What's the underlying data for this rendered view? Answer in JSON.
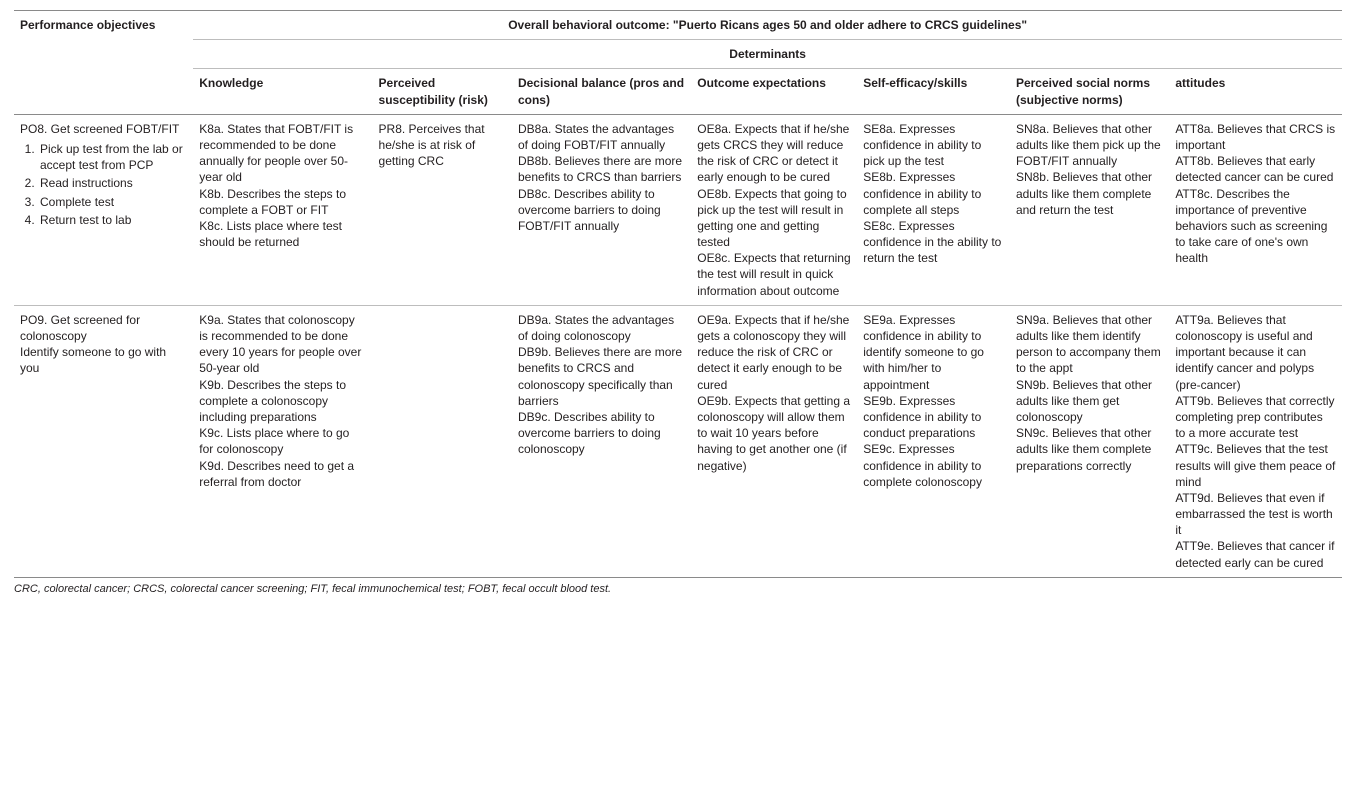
{
  "header": {
    "perf_obj": "Performance objectives",
    "overall": "Overall behavioral outcome: \"Puerto Ricans ages 50 and older adhere to CRCS guidelines\"",
    "determinants": "Determinants",
    "cols": {
      "knowledge": "Knowledge",
      "susceptibility": "Perceived susceptibility (risk)",
      "decisional": "Decisional balance (pros and cons)",
      "outcome": "Outcome expectations",
      "selfefficacy": "Self-efficacy/skills",
      "norms": "Perceived social norms (subjective norms)",
      "attitudes": "attitudes"
    }
  },
  "row_po8": {
    "po_title": "PO8. Get screened FOBT/FIT",
    "po_items": [
      "Pick up test from the lab or accept test from PCP",
      "Read instructions",
      "Complete test",
      "Return test to lab"
    ],
    "knowledge": "K8a. States that FOBT/FIT is recommended to be done annually for people over 50-year old\nK8b. Describes the steps to complete a FOBT or FIT\nK8c. Lists place where test should be returned",
    "susceptibility": "PR8. Perceives that he/she is at risk of getting CRC",
    "decisional": "DB8a. States the advantages of doing FOBT/FIT annually\nDB8b. Believes there are more benefits to CRCS than barriers\nDB8c. Describes ability to overcome barriers to doing FOBT/FIT annually",
    "outcome": "OE8a. Expects that if he/she gets CRCS they will reduce the risk of CRC or detect it early enough to be cured\nOE8b. Expects that going to pick up the test will result in getting one and getting tested\nOE8c. Expects that returning the test will result in quick information about outcome",
    "selfefficacy": "SE8a. Expresses confidence in ability to pick up the test\nSE8b. Expresses confidence in ability to complete all steps\nSE8c. Expresses confidence in the ability to return the test",
    "norms": "SN8a. Believes that other adults like them pick up the FOBT/FIT annually\nSN8b. Believes that other adults like them complete and return the test",
    "attitudes": "ATT8a. Believes that CRCS is important\nATT8b. Believes that early detected cancer can be cured\nATT8c. Describes the importance of preventive behaviors such as screening to take care of one's own health"
  },
  "row_po9": {
    "po_title": "PO9. Get screened for colonoscopy\nIdentify someone to go with you",
    "knowledge": "K9a. States that colonoscopy is recommended to be done every 10 years for people over 50-year old\nK9b. Describes the steps to complete a colonoscopy including preparations\nK9c. Lists place where to go for colonoscopy\nK9d. Describes need to get a referral from doctor",
    "susceptibility": "",
    "decisional": "DB9a. States the advantages of doing colonoscopy\nDB9b. Believes there are more benefits to CRCS and colonoscopy specifically than barriers\nDB9c. Describes ability to overcome barriers to doing colonoscopy",
    "outcome": "OE9a. Expects that if he/she gets a colonoscopy they will reduce the risk of CRC or detect it early enough to be cured\nOE9b. Expects that getting a colonoscopy will allow them to wait 10 years before having to get another one (if negative)",
    "selfefficacy": "SE9a. Expresses confidence in ability to identify someone to go with him/her to appointment\nSE9b. Expresses confidence in ability to conduct preparations\nSE9c. Expresses confidence in ability to complete colonoscopy",
    "norms": "SN9a. Believes that other adults like them identify person to accompany them to the appt\nSN9b. Believes that other adults like them get colonoscopy\nSN9c. Believes that other adults like them complete preparations correctly",
    "attitudes": "ATT9a. Believes that colonoscopy is useful and important because it can identify cancer and polyps (pre-cancer)\nATT9b. Believes that correctly completing prep contributes to a more accurate test\nATT9c. Believes that the test results will give them peace of mind\nATT9d. Believes that even if embarrassed the test is worth it\nATT9e. Believes that cancer if detected early can be cured"
  },
  "footnote": "CRC, colorectal cancer; CRCS, colorectal cancer screening; FIT, fecal immunochemical test; FOBT, fecal occult blood test."
}
